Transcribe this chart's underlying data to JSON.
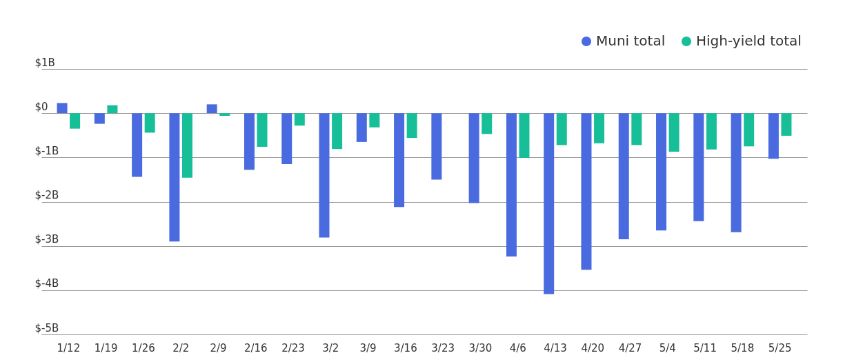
{
  "chart_data": {
    "type": "bar",
    "categories": [
      "1/12",
      "1/19",
      "1/26",
      "2/2",
      "2/9",
      "2/16",
      "2/23",
      "3/2",
      "3/9",
      "3/16",
      "3/23",
      "3/30",
      "4/6",
      "4/13",
      "4/20",
      "4/27",
      "5/4",
      "5/11",
      "5/18",
      "5/25"
    ],
    "series": [
      {
        "name": "Muni total",
        "color": "#4a6be0",
        "values": [
          0.23,
          -0.24,
          -1.44,
          -2.9,
          0.2,
          -1.28,
          -1.15,
          -2.81,
          -0.65,
          -2.12,
          -1.5,
          -2.03,
          -3.24,
          -4.09,
          -3.54,
          -2.85,
          -2.65,
          -2.44,
          -2.69,
          -1.03
        ]
      },
      {
        "name": "High-yield total",
        "color": "#17bf98",
        "values": [
          -0.35,
          0.18,
          -0.44,
          -1.46,
          -0.06,
          -0.76,
          -0.28,
          -0.81,
          -0.32,
          -0.56,
          null,
          -0.47,
          -1.01,
          -0.72,
          -0.68,
          -0.72,
          -0.87,
          -0.82,
          -0.75,
          -0.51
        ]
      }
    ],
    "ylim": [
      -5,
      1
    ],
    "yticks": [
      {
        "value": 1,
        "label": "$1B"
      },
      {
        "value": 0,
        "label": "$0"
      },
      {
        "value": -1,
        "label": "$-1B"
      },
      {
        "value": -2,
        "label": "$-2B"
      },
      {
        "value": -3,
        "label": "$-3B"
      },
      {
        "value": -4,
        "label": "$-4B"
      },
      {
        "value": -5,
        "label": "$-5B"
      }
    ],
    "grid": "y",
    "legend": "top right"
  }
}
